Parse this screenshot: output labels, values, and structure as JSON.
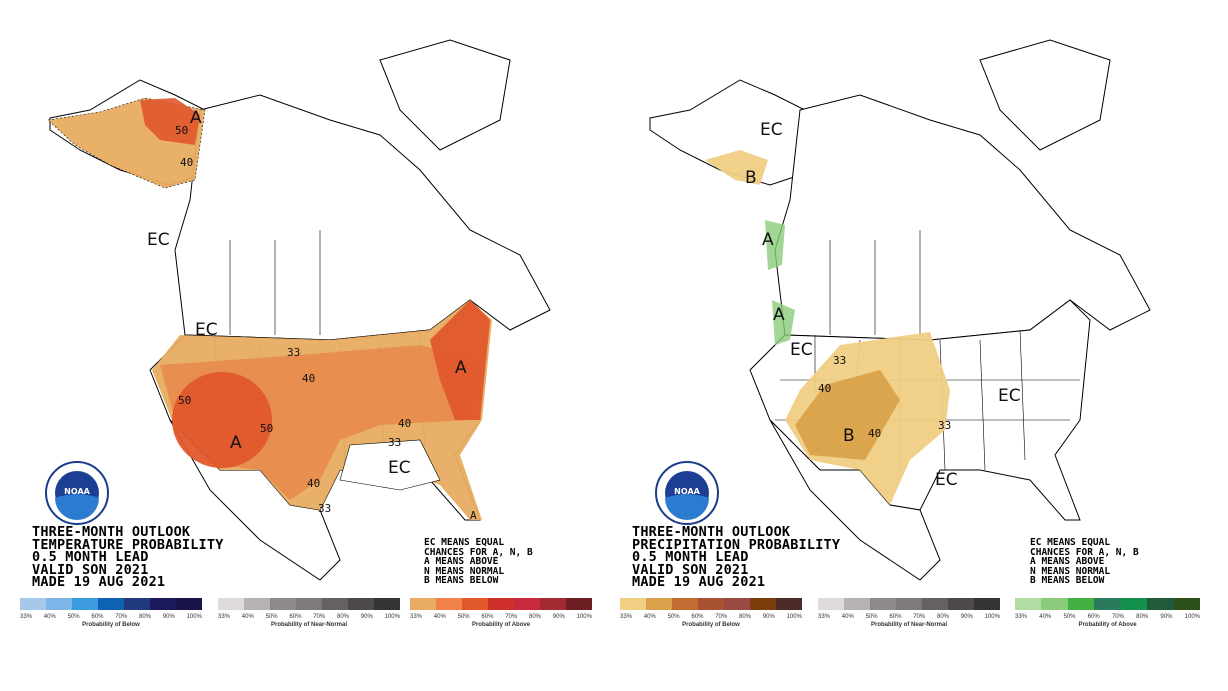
{
  "ticks": [
    "33%",
    "40%",
    "50%",
    "60%",
    "70%",
    "80%",
    "90%",
    "100%"
  ],
  "panels": [
    {
      "title_lines": [
        "THREE-MONTH OUTLOOK",
        "TEMPERATURE PROBABILITY",
        "0.5 MONTH LEAD",
        "VALID SON 2021",
        "MADE 19 AUG 2021"
      ],
      "key_lines": [
        "EC MEANS EQUAL",
        "CHANCES FOR A, N, B",
        "A MEANS ABOVE",
        "N MEANS NORMAL",
        "B MEANS BELOW"
      ],
      "logo_text": "NOAA",
      "map_labels": {
        "ak_a": "A",
        "ak_50": "50",
        "ak_40": "40",
        "ec_w": "EC",
        "ec_nw": "EC",
        "c33": "33",
        "c40": "40",
        "sw50": "50",
        "sw50b": "50",
        "sw_a": "A",
        "ne_a": "A",
        "e40": "40",
        "se33": "33",
        "s40": "40",
        "s33": "33",
        "ec_se": "EC",
        "fl_a": "A"
      },
      "legends": [
        {
          "title": "Probability of Below",
          "colors": [
            "#a6c8ea",
            "#7cb6e8",
            "#3c9ade",
            "#0d62b2",
            "#213a7c",
            "#1b185c",
            "#19154a"
          ]
        },
        {
          "title": "Probability of Near-Normal",
          "colors": [
            "#dedada",
            "#b6b2b2",
            "#8e8a8a",
            "#7e7a7a",
            "#656161",
            "#4d4949",
            "#343434"
          ]
        },
        {
          "title": "Probability of Above",
          "colors": [
            "#e8ac62",
            "#f2824a",
            "#e0582c",
            "#cf2f2a",
            "#c62a3c",
            "#a22a32",
            "#6c1e22"
          ]
        }
      ]
    },
    {
      "title_lines": [
        "THREE-MONTH OUTLOOK",
        "PRECIPITATION PROBABILITY",
        "0.5 MONTH LEAD",
        "VALID SON 2021",
        "MADE 19 AUG 2021"
      ],
      "key_lines": [
        "EC MEANS EQUAL",
        "CHANCES FOR A, N, B",
        "A MEANS ABOVE",
        "N MEANS NORMAL",
        "B MEANS BELOW"
      ],
      "logo_text": "NOAA",
      "map_labels": {
        "ec_n": "EC",
        "ak_b": "B",
        "bc_a": "A",
        "wa_a": "A",
        "ec_w": "EC",
        "c33": "33",
        "c40": "40",
        "sw_b": "B",
        "s40": "40",
        "e33": "33",
        "ec_e": "EC",
        "ec_s": "EC"
      },
      "legends": [
        {
          "title": "Probability of Below",
          "colors": [
            "#f0ce84",
            "#d9a24a",
            "#c06c32",
            "#a95232",
            "#9a4a42",
            "#7a3d0a",
            "#4b2b29"
          ]
        },
        {
          "title": "Probability of Near-Normal",
          "colors": [
            "#dedada",
            "#b6b2b2",
            "#8e8a8a",
            "#7e7a7a",
            "#656161",
            "#4d4949",
            "#343434"
          ]
        },
        {
          "title": "Probability of Above",
          "colors": [
            "#b2dca2",
            "#8acc7a",
            "#42b042",
            "#2c7a5c",
            "#12904c",
            "#1f5a3b",
            "#2b5019"
          ]
        }
      ]
    }
  ]
}
